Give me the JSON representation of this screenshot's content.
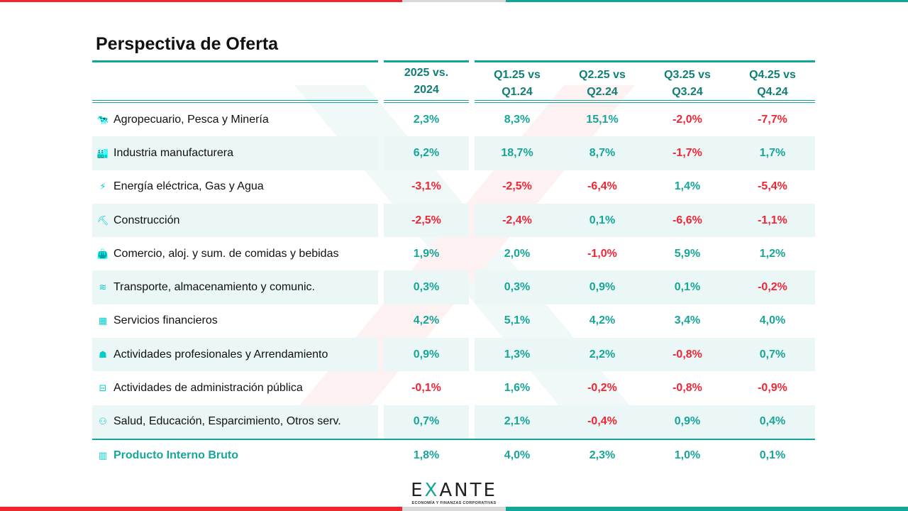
{
  "title": "Perspectiva de Oferta",
  "headers": [
    "2025 vs.\n2024",
    "Q1.25 vs\nQ1.24",
    "Q2.25 vs\nQ2.24",
    "Q3.25 vs\nQ3.24",
    "Q4.25 vs\nQ4.24"
  ],
  "rows": [
    {
      "icon": "cow-icon",
      "label": "Agropecuario, Pesca y Minería",
      "values": [
        "2,3%",
        "8,3%",
        "15,1%",
        "-2,0%",
        "-7,7%"
      ]
    },
    {
      "icon": "factory-icon",
      "label": "Industria manufacturera",
      "values": [
        "6,2%",
        "18,7%",
        "8,7%",
        "-1,7%",
        "1,7%"
      ]
    },
    {
      "icon": "power-tower-icon",
      "label": "Energía eléctrica, Gas y Agua",
      "values": [
        "-3,1%",
        "-2,5%",
        "-6,4%",
        "1,4%",
        "-5,4%"
      ]
    },
    {
      "icon": "construction-worker-icon",
      "label": "Construcción",
      "values": [
        "-2,5%",
        "-2,4%",
        "0,1%",
        "-6,6%",
        "-1,1%"
      ]
    },
    {
      "icon": "shopping-bag-icon",
      "label": "Comercio,  aloj. y sum. de comidas y bebidas",
      "values": [
        "1,9%",
        "2,0%",
        "-1,0%",
        "5,9%",
        "1,2%"
      ]
    },
    {
      "icon": "wifi-icon",
      "label": "Transporte, almacenamiento y comunic.",
      "values": [
        "0,3%",
        "0,3%",
        "0,9%",
        "0,1%",
        "-0,2%"
      ]
    },
    {
      "icon": "bank-icon",
      "label": "Servicios financieros",
      "values": [
        "4,2%",
        "5,1%",
        "4,2%",
        "3,4%",
        "4,0%"
      ]
    },
    {
      "icon": "professionals-icon",
      "label": "Actividades profesionales y Arrendamiento",
      "values": [
        "0,9%",
        "1,3%",
        "2,2%",
        "-0,8%",
        "0,7%"
      ]
    },
    {
      "icon": "briefcase-icon",
      "label": "Actividades de administración pública",
      "values": [
        "-0,1%",
        "1,6%",
        "-0,2%",
        "-0,8%",
        "-0,9%"
      ]
    },
    {
      "icon": "people-icon",
      "label": "Salud, Educación, Esparcimiento, Otros serv.",
      "values": [
        "0,7%",
        "2,1%",
        "-0,4%",
        "0,9%",
        "0,4%"
      ]
    }
  ],
  "total": {
    "icon": "bar-chart-icon",
    "label": "Producto Interno Bruto",
    "values": [
      "1,8%",
      "4,0%",
      "2,3%",
      "1,0%",
      "0,1%"
    ]
  },
  "logo": {
    "name": "EXANTE",
    "tagline": "ECONOMÍA Y FINANZAS CORPORATIVAS"
  },
  "colors": {
    "positive": "#17a697",
    "negative": "#ee2737",
    "accent": "#13a597",
    "red": "#f0262f"
  }
}
